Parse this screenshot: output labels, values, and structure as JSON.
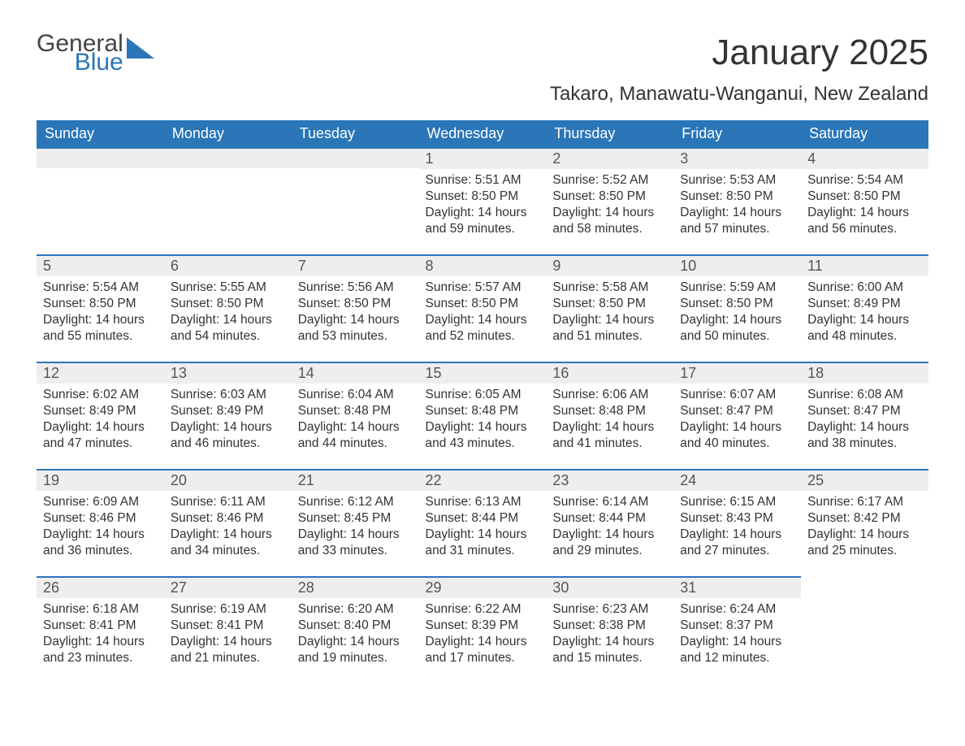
{
  "logo": {
    "general": "General",
    "blue": "Blue"
  },
  "title": "January 2025",
  "location": "Takaro, Manawatu-Wanganui, New Zealand",
  "colors": {
    "header_bg": "#2a76b8",
    "header_text": "#ffffff",
    "daynum_bg": "#eeeeee",
    "daynum_border": "#2a76b8",
    "body_text": "#333333",
    "page_bg": "#ffffff",
    "logo_gray": "#444444",
    "logo_blue": "#2a76b8"
  },
  "typography": {
    "title_fontsize": 44,
    "location_fontsize": 24,
    "dayheader_fontsize": 18,
    "daynum_fontsize": 18,
    "body_fontsize": 15.5,
    "font_family": "Arial"
  },
  "day_headers": [
    "Sunday",
    "Monday",
    "Tuesday",
    "Wednesday",
    "Thursday",
    "Friday",
    "Saturday"
  ],
  "labels": {
    "sunrise": "Sunrise: ",
    "sunset": "Sunset: ",
    "daylight": "Daylight: "
  },
  "weeks": [
    [
      null,
      null,
      null,
      {
        "n": "1",
        "sr": "5:51 AM",
        "ss": "8:50 PM",
        "dl": "14 hours and 59 minutes."
      },
      {
        "n": "2",
        "sr": "5:52 AM",
        "ss": "8:50 PM",
        "dl": "14 hours and 58 minutes."
      },
      {
        "n": "3",
        "sr": "5:53 AM",
        "ss": "8:50 PM",
        "dl": "14 hours and 57 minutes."
      },
      {
        "n": "4",
        "sr": "5:54 AM",
        "ss": "8:50 PM",
        "dl": "14 hours and 56 minutes."
      }
    ],
    [
      {
        "n": "5",
        "sr": "5:54 AM",
        "ss": "8:50 PM",
        "dl": "14 hours and 55 minutes."
      },
      {
        "n": "6",
        "sr": "5:55 AM",
        "ss": "8:50 PM",
        "dl": "14 hours and 54 minutes."
      },
      {
        "n": "7",
        "sr": "5:56 AM",
        "ss": "8:50 PM",
        "dl": "14 hours and 53 minutes."
      },
      {
        "n": "8",
        "sr": "5:57 AM",
        "ss": "8:50 PM",
        "dl": "14 hours and 52 minutes."
      },
      {
        "n": "9",
        "sr": "5:58 AM",
        "ss": "8:50 PM",
        "dl": "14 hours and 51 minutes."
      },
      {
        "n": "10",
        "sr": "5:59 AM",
        "ss": "8:50 PM",
        "dl": "14 hours and 50 minutes."
      },
      {
        "n": "11",
        "sr": "6:00 AM",
        "ss": "8:49 PM",
        "dl": "14 hours and 48 minutes."
      }
    ],
    [
      {
        "n": "12",
        "sr": "6:02 AM",
        "ss": "8:49 PM",
        "dl": "14 hours and 47 minutes."
      },
      {
        "n": "13",
        "sr": "6:03 AM",
        "ss": "8:49 PM",
        "dl": "14 hours and 46 minutes."
      },
      {
        "n": "14",
        "sr": "6:04 AM",
        "ss": "8:48 PM",
        "dl": "14 hours and 44 minutes."
      },
      {
        "n": "15",
        "sr": "6:05 AM",
        "ss": "8:48 PM",
        "dl": "14 hours and 43 minutes."
      },
      {
        "n": "16",
        "sr": "6:06 AM",
        "ss": "8:48 PM",
        "dl": "14 hours and 41 minutes."
      },
      {
        "n": "17",
        "sr": "6:07 AM",
        "ss": "8:47 PM",
        "dl": "14 hours and 40 minutes."
      },
      {
        "n": "18",
        "sr": "6:08 AM",
        "ss": "8:47 PM",
        "dl": "14 hours and 38 minutes."
      }
    ],
    [
      {
        "n": "19",
        "sr": "6:09 AM",
        "ss": "8:46 PM",
        "dl": "14 hours and 36 minutes."
      },
      {
        "n": "20",
        "sr": "6:11 AM",
        "ss": "8:46 PM",
        "dl": "14 hours and 34 minutes."
      },
      {
        "n": "21",
        "sr": "6:12 AM",
        "ss": "8:45 PM",
        "dl": "14 hours and 33 minutes."
      },
      {
        "n": "22",
        "sr": "6:13 AM",
        "ss": "8:44 PM",
        "dl": "14 hours and 31 minutes."
      },
      {
        "n": "23",
        "sr": "6:14 AM",
        "ss": "8:44 PM",
        "dl": "14 hours and 29 minutes."
      },
      {
        "n": "24",
        "sr": "6:15 AM",
        "ss": "8:43 PM",
        "dl": "14 hours and 27 minutes."
      },
      {
        "n": "25",
        "sr": "6:17 AM",
        "ss": "8:42 PM",
        "dl": "14 hours and 25 minutes."
      }
    ],
    [
      {
        "n": "26",
        "sr": "6:18 AM",
        "ss": "8:41 PM",
        "dl": "14 hours and 23 minutes."
      },
      {
        "n": "27",
        "sr": "6:19 AM",
        "ss": "8:41 PM",
        "dl": "14 hours and 21 minutes."
      },
      {
        "n": "28",
        "sr": "6:20 AM",
        "ss": "8:40 PM",
        "dl": "14 hours and 19 minutes."
      },
      {
        "n": "29",
        "sr": "6:22 AM",
        "ss": "8:39 PM",
        "dl": "14 hours and 17 minutes."
      },
      {
        "n": "30",
        "sr": "6:23 AM",
        "ss": "8:38 PM",
        "dl": "14 hours and 15 minutes."
      },
      {
        "n": "31",
        "sr": "6:24 AM",
        "ss": "8:37 PM",
        "dl": "14 hours and 12 minutes."
      },
      null
    ]
  ]
}
